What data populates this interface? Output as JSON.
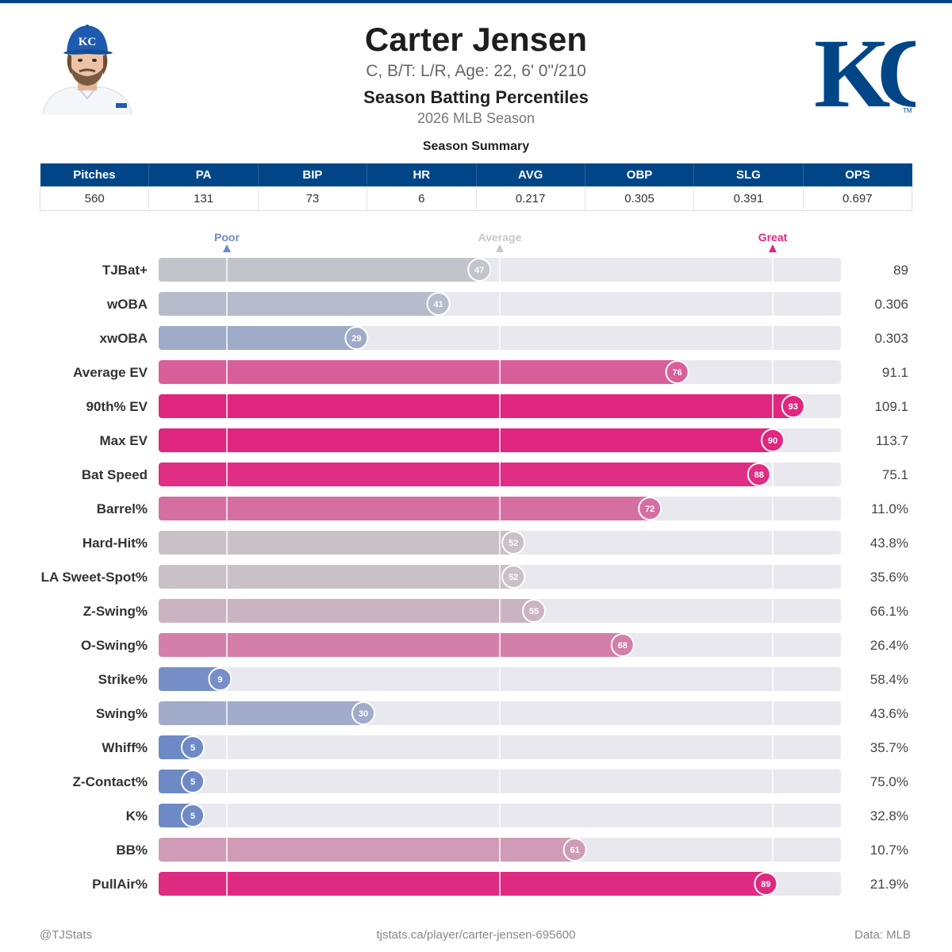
{
  "header": {
    "player_name": "Carter Jensen",
    "bio_line": "C, B/T: L/R, Age: 22, 6' 0\"/210",
    "subtitle": "Season Batting Percentiles",
    "season": "2026 MLB Season",
    "cap_logo_text": "KC",
    "team_logo_text": "KC",
    "team_logo_mark": "TM"
  },
  "colors": {
    "team_blue": "#004687",
    "track": "#e8e8ee",
    "poor": "#6e8ac6",
    "average": "#c8c8cc",
    "great": "#e0267f"
  },
  "summary": {
    "title": "Season Summary",
    "columns": [
      "Pitches",
      "PA",
      "BIP",
      "HR",
      "AVG",
      "OBP",
      "SLG",
      "OPS"
    ],
    "values": [
      "560",
      "131",
      "73",
      "6",
      "0.217",
      "0.305",
      "0.391",
      "0.697"
    ]
  },
  "chart_data": {
    "type": "bar",
    "orientation": "horizontal",
    "xlim": [
      0,
      100
    ],
    "markers": [
      {
        "label": "Poor",
        "value": 10,
        "color": "#6e8ac6"
      },
      {
        "label": "Average",
        "value": 50,
        "color": "#c8c8cc"
      },
      {
        "label": "Great",
        "value": 90,
        "color": "#e0267f"
      }
    ],
    "categories": [
      "TJBat+",
      "wOBA",
      "xwOBA",
      "Average EV",
      "90th% EV",
      "Max EV",
      "Bat Speed",
      "Barrel%",
      "Hard-Hit%",
      "LA Sweet-Spot%",
      "Z-Swing%",
      "O-Swing%",
      "Strike%",
      "Swing%",
      "Whiff%",
      "Z-Contact%",
      "K%",
      "BB%",
      "PullAir%"
    ],
    "percentiles": [
      47,
      41,
      29,
      76,
      93,
      90,
      88,
      72,
      52,
      52,
      55,
      68,
      9,
      30,
      5,
      5,
      5,
      61,
      89
    ],
    "stat_values": [
      "89",
      "0.306",
      "0.303",
      "91.1",
      "109.1",
      "113.7",
      "75.1",
      "11.0%",
      "43.8%",
      "35.6%",
      "66.1%",
      "26.4%",
      "58.4%",
      "43.6%",
      "35.7%",
      "75.0%",
      "32.8%",
      "10.7%",
      "21.9%"
    ]
  },
  "footer": {
    "left": "@TJStats",
    "center": "tjstats.ca/player/carter-jensen-695600",
    "right": "Data: MLB"
  }
}
